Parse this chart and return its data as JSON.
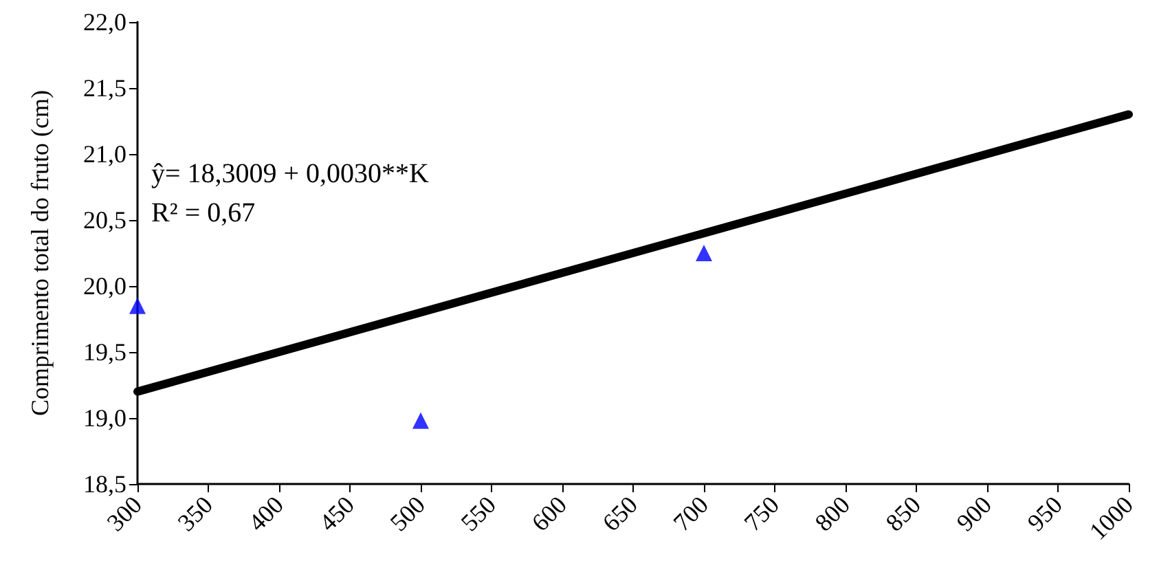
{
  "chart_data": {
    "type": "scatter",
    "ylabel": "Comprimento total do fruto (cm)",
    "annotations": [
      "ŷ= 18,3009 + 0,0030**K",
      "R² = 0,67"
    ],
    "xlim": [
      300,
      1000
    ],
    "xticks": [
      300,
      350,
      400,
      450,
      500,
      550,
      600,
      650,
      700,
      750,
      800,
      850,
      900,
      950,
      1000
    ],
    "ylim": [
      18.5,
      22
    ],
    "yticks": [
      {
        "value": 18.5,
        "label": "18,5"
      },
      {
        "value": 19,
        "label": "19,0"
      },
      {
        "value": 19.5,
        "label": "19,5"
      },
      {
        "value": 20,
        "label": "20,0"
      },
      {
        "value": 20.5,
        "label": "20,5"
      },
      {
        "value": 21,
        "label": "21,0"
      },
      {
        "value": 21.5,
        "label": "21,5"
      },
      {
        "value": 22,
        "label": "22,0"
      }
    ],
    "grid": false,
    "series": [
      {
        "color": "#0000ff",
        "marker": "triangle",
        "x": [
          300,
          500,
          700
        ],
        "values": [
          19.85,
          18.98,
          20.25
        ]
      },
      {
        "type": "line",
        "color": "#000000",
        "marker": "none",
        "line_style": "solid",
        "x": [
          300,
          1000
        ],
        "values": [
          19.2,
          21.3
        ]
      }
    ]
  }
}
